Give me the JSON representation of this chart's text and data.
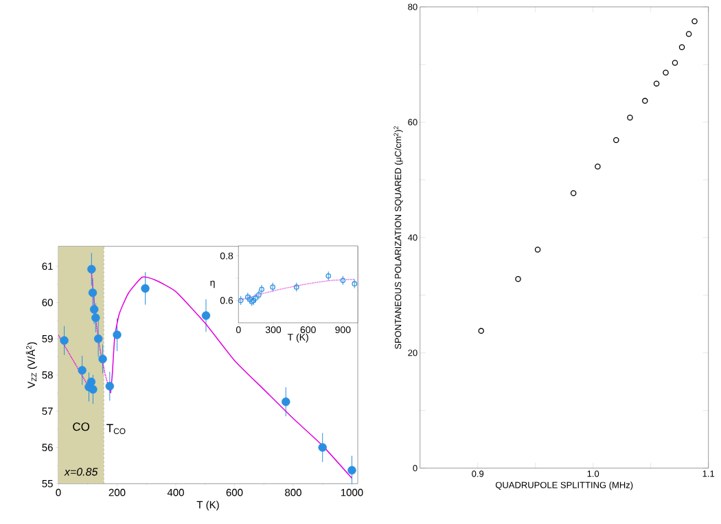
{
  "chart_data": [
    {
      "type": "scatter",
      "xlabel": "T (K)",
      "ylabel": "V$_{ZZ}$ (V/Å$^{2}$)",
      "xlim": [
        0,
        1020
      ],
      "ylim": [
        55,
        61.55
      ],
      "xticks": [
        0,
        200,
        400,
        600,
        800,
        1000
      ],
      "yticks": [
        55,
        56,
        57,
        58,
        59,
        60,
        61
      ],
      "series": [
        {
          "color": "#2a8fe0",
          "marker": "circle",
          "x": [
            20,
            81,
            104,
            112,
            118,
            113,
            117,
            122,
            127,
            136,
            151,
            175,
            200,
            296,
            503,
            775,
            900,
            1000
          ],
          "values": [
            58.95,
            58.13,
            57.67,
            57.81,
            57.6,
            60.92,
            60.27,
            59.81,
            59.58,
            59.0,
            58.44,
            57.69,
            59.11,
            60.39,
            59.64,
            57.26,
            56.0,
            55.37
          ],
          "errors": [
            0.4,
            0.4,
            0.4,
            null,
            0.4,
            0.45,
            0.4,
            0.4,
            0.4,
            0.5,
            0.4,
            0.4,
            0.45,
            0.45,
            0.45,
            0.4,
            0.4,
            0.4
          ]
        },
        {
          "type": "line",
          "color": "#e000e0",
          "line_style": "dotted",
          "x": [
            0,
            112
          ],
          "values": [
            59.1,
            57.55
          ]
        },
        {
          "type": "line",
          "color": "#e000e0",
          "line_style": "dotted",
          "x": [
            112,
            125,
            140,
            160,
            178
          ],
          "values": [
            60.95,
            59.7,
            58.8,
            58.0,
            57.5
          ]
        },
        {
          "type": "line",
          "color": "#e000e0",
          "line_style": "solid",
          "x": [
            178,
            184,
            192,
            208,
            239,
            286,
            330,
            400,
            500,
            600,
            700,
            800,
            900,
            1000
          ],
          "values": [
            57.5,
            58.05,
            59.05,
            59.7,
            60.26,
            60.7,
            60.62,
            60.3,
            59.43,
            58.4,
            57.6,
            56.8,
            56.05,
            55.15
          ]
        }
      ],
      "bands": [
        {
          "axis": "x",
          "from": 0,
          "to": 155,
          "label": "CO",
          "color": "#d6d3a8"
        }
      ],
      "ref_lines": [
        {
          "axis": "x",
          "value": 155,
          "label": "T$_{CO}$",
          "line_style": "dashed"
        }
      ],
      "annotations": [
        "x=0.85"
      ]
    },
    {
      "type": "scatter",
      "xlabel": "T (K)",
      "ylabel": "η",
      "xlim": [
        0,
        1028
      ],
      "ylim": [
        0.5,
        0.845
      ],
      "xticks": [
        0,
        300,
        600,
        900
      ],
      "yticks": [
        0.6,
        {
          "value": 0.7,
          "label": null
        },
        0.8
      ],
      "series": [
        {
          "color": "#2a8fe0",
          "marker": "circle",
          "x": [
            20,
            80,
            100,
            115,
            130,
            145,
            175,
            200,
            295,
            500,
            775,
            900,
            1000
          ],
          "values": [
            0.6,
            0.615,
            0.605,
            0.595,
            0.6,
            0.61,
            0.625,
            0.65,
            0.66,
            0.66,
            0.71,
            0.69,
            0.675
          ],
          "errors": [
            0.02,
            0.02,
            0.02,
            0.02,
            0.02,
            0.02,
            0.02,
            0.02,
            0.02,
            0.02,
            0.02,
            0.02,
            0.02
          ]
        },
        {
          "type": "line",
          "color": "#e060e0",
          "line_style": "dotted",
          "x": [
            0,
            200,
            400,
            600,
            800,
            1000
          ],
          "values": [
            0.6,
            0.63,
            0.655,
            0.675,
            0.69,
            0.695
          ]
        }
      ]
    },
    {
      "type": "scatter",
      "xlabel": "QUADRUPOLE   SPLITTING (MHz)",
      "ylabel": "SPONTANEOUS   POLARIZATION   SQUARED  (μC/cm$^{2}$)$^{2}$",
      "xlim": [
        0.85,
        1.1
      ],
      "ylim": [
        0,
        80
      ],
      "xticks": [
        0.9,
        {
          "value": 0.95,
          "label": null
        },
        {
          "value": 1.0,
          "label": "1.0"
        },
        {
          "value": 1.05,
          "label": null
        },
        {
          "value": 1.1,
          "label": "1.1"
        }
      ],
      "yticks": [
        0,
        {
          "value": 10,
          "label": null
        },
        20,
        {
          "value": 30,
          "label": null
        },
        40,
        {
          "value": 50,
          "label": null
        },
        60,
        {
          "value": 70,
          "label": null
        },
        80
      ],
      "series": [
        {
          "color": "#000000",
          "marker": "circle",
          "x": [
            0.903,
            0.935,
            0.952,
            0.983,
            1.004,
            1.02,
            1.032,
            1.045,
            1.055,
            1.063,
            1.071,
            1.077,
            1.083,
            1.088
          ],
          "values": [
            23.8,
            32.8,
            37.9,
            47.7,
            52.3,
            56.9,
            60.8,
            63.7,
            66.7,
            68.6,
            70.3,
            73.0,
            75.3,
            77.5
          ]
        }
      ]
    }
  ]
}
